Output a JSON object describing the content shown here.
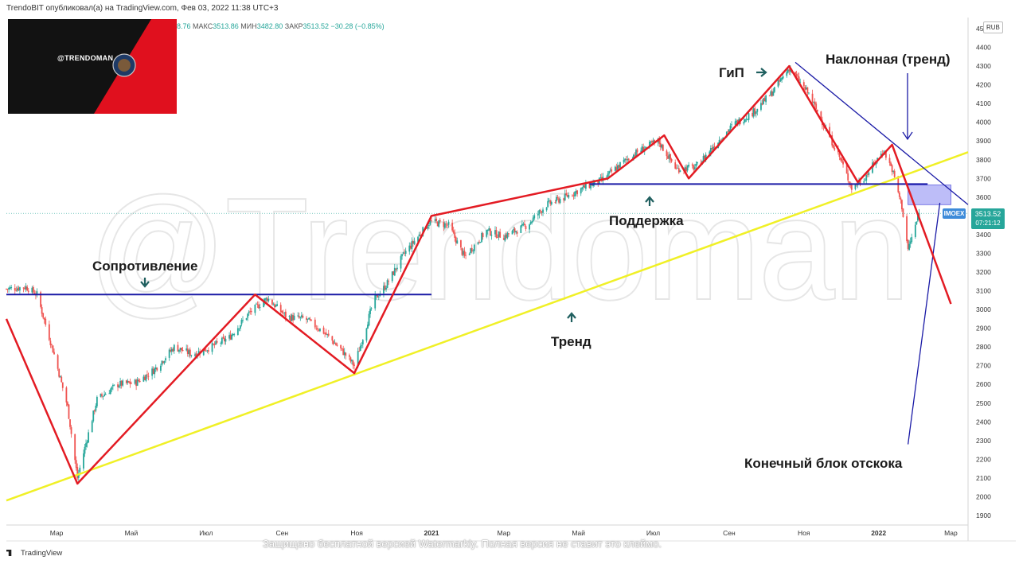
{
  "header": {
    "publish_info": "TrendoBIT опубликовал(а) на TradingView.com, Фев 03, 2022 11:38 UTC+3",
    "ohlc_open": "8.76",
    "ohlc_high_label": "МАКС",
    "ohlc_high": "3513.86",
    "ohlc_low_label": "МИН",
    "ohlc_low": "3482.80",
    "ohlc_close_label": "ЗАКР",
    "ohlc_close": "3513.52",
    "ohlc_change": "−30.28 (−0.85%)"
  },
  "logo": {
    "handle": "@TRENDOMAN"
  },
  "watermark": {
    "text": "@Trendoman",
    "bottom_notice": "Защищено бесплатной версией Watermarkly. Полная версия не ставит это клеймо."
  },
  "symbol": {
    "ticker": "IMOEX",
    "last_price": "3513.52",
    "countdown": "07:21:12",
    "currency": "RUB"
  },
  "footer": {
    "brand": "TradingView"
  },
  "annotations": {
    "resistance": "Сопротивление",
    "support": "Поддержка",
    "trend": "Тренд",
    "hns": "ГиП",
    "sloped": "Наклонная (тренд)",
    "dead_cat": "Конечный блок отскока"
  },
  "colors": {
    "up": "#26a69a",
    "down": "#ef5350",
    "zigzag": "#e31b23",
    "level": "#1a1aa6",
    "trendline": "#f0f026",
    "zone_fill": "#a7a7f5"
  },
  "chart_data": {
    "type": "candlestick",
    "y_unit": "RUB",
    "ylim": [
      1850,
      4520
    ],
    "y_ticks": [
      1900,
      2000,
      2100,
      2200,
      2300,
      2400,
      2500,
      2600,
      2700,
      2800,
      2900,
      3000,
      3100,
      3200,
      3300,
      3400,
      3500,
      3600,
      3700,
      3800,
      3900,
      4000,
      4100,
      4200,
      4300,
      4400,
      4500
    ],
    "x_tick_labels": [
      "Мар",
      "Май",
      "Июл",
      "Сен",
      "Ноя",
      "2021",
      "Мар",
      "Май",
      "Июл",
      "Сен",
      "Ноя",
      "2022",
      "Мар"
    ],
    "x_range": [
      "2020-01-20",
      "2022-03-15"
    ],
    "price_path": [
      [
        "2020-01-20",
        3110
      ],
      [
        "2020-02-05",
        3120
      ],
      [
        "2020-02-14",
        3080
      ],
      [
        "2020-02-28",
        2760
      ],
      [
        "2020-03-10",
        2480
      ],
      [
        "2020-03-18",
        2100
      ],
      [
        "2020-03-24",
        2260
      ],
      [
        "2020-04-03",
        2520
      ],
      [
        "2020-04-20",
        2600
      ],
      [
        "2020-05-05",
        2610
      ],
      [
        "2020-05-20",
        2680
      ],
      [
        "2020-06-05",
        2800
      ],
      [
        "2020-06-20",
        2760
      ],
      [
        "2020-07-05",
        2800
      ],
      [
        "2020-07-20",
        2850
      ],
      [
        "2020-08-05",
        2980
      ],
      [
        "2020-08-20",
        3060
      ],
      [
        "2020-09-05",
        2960
      ],
      [
        "2020-09-20",
        2950
      ],
      [
        "2020-10-05",
        2880
      ],
      [
        "2020-10-20",
        2780
      ],
      [
        "2020-10-30",
        2700
      ],
      [
        "2020-11-06",
        2850
      ],
      [
        "2020-11-15",
        3050
      ],
      [
        "2020-11-25",
        3130
      ],
      [
        "2020-12-10",
        3300
      ],
      [
        "2020-12-31",
        3470
      ],
      [
        "2021-01-15",
        3450
      ],
      [
        "2021-01-28",
        3280
      ],
      [
        "2021-02-15",
        3420
      ],
      [
        "2021-03-01",
        3390
      ],
      [
        "2021-03-20",
        3450
      ],
      [
        "2021-04-05",
        3560
      ],
      [
        "2021-04-20",
        3600
      ],
      [
        "2021-05-05",
        3650
      ],
      [
        "2021-05-20",
        3690
      ],
      [
        "2021-06-05",
        3780
      ],
      [
        "2021-06-20",
        3850
      ],
      [
        "2021-07-05",
        3900
      ],
      [
        "2021-07-20",
        3750
      ],
      [
        "2021-08-05",
        3760
      ],
      [
        "2021-08-20",
        3880
      ],
      [
        "2021-09-05",
        3990
      ],
      [
        "2021-09-20",
        4050
      ],
      [
        "2021-10-05",
        4150
      ],
      [
        "2021-10-20",
        4290
      ],
      [
        "2021-11-05",
        4150
      ],
      [
        "2021-11-20",
        3950
      ],
      [
        "2021-12-01",
        3800
      ],
      [
        "2021-12-10",
        3650
      ],
      [
        "2021-12-20",
        3700
      ],
      [
        "2022-01-05",
        3850
      ],
      [
        "2022-01-12",
        3750
      ],
      [
        "2022-01-20",
        3550
      ],
      [
        "2022-01-25",
        3320
      ],
      [
        "2022-02-01",
        3470
      ],
      [
        "2022-02-03",
        3513
      ]
    ],
    "levels": [
      {
        "name": "Сопротивление",
        "value": 3080,
        "from": "2020-01-20",
        "to": "2021-01-01"
      },
      {
        "name": "Поддержка",
        "value": 3670,
        "from": "2021-05-10",
        "to": "2022-02-10"
      }
    ],
    "trend_line": {
      "from": [
        "2020-01-20",
        1980
      ],
      "to": [
        "2022-03-15",
        3840
      ]
    },
    "sloped_line": {
      "from": [
        "2021-10-25",
        4320
      ],
      "to": [
        "2022-03-15",
        3560
      ]
    },
    "support_zone": {
      "from": "2022-01-25",
      "to": "2022-03-01",
      "low": 3560,
      "high": 3665
    },
    "zigzag": [
      [
        "2020-01-20",
        2950
      ],
      [
        "2020-03-18",
        2070
      ],
      [
        "2020-08-10",
        3080
      ],
      [
        "2020-10-30",
        2660
      ],
      [
        "2021-01-01",
        3500
      ],
      [
        "2021-05-25",
        3700
      ],
      [
        "2021-07-10",
        3930
      ],
      [
        "2021-07-30",
        3700
      ],
      [
        "2021-10-20",
        4300
      ],
      [
        "2021-12-15",
        3680
      ],
      [
        "2022-01-12",
        3880
      ],
      [
        "2022-03-01",
        3030
      ]
    ],
    "rebound_line": {
      "from": [
        "2022-01-25",
        2280
      ],
      "to": [
        "2022-02-20",
        3570
      ]
    }
  }
}
